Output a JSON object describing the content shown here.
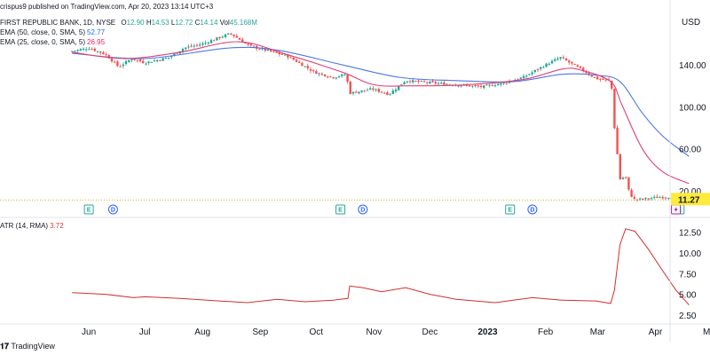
{
  "header": {
    "published": "crispus9 published on TradingView.com, Apr 20, 2023 13:14 UTC+3",
    "symbol": "FIRST REPUBLIC BANK, 1D, NYSE",
    "ohlc": {
      "o_label": "O",
      "o": "12.90",
      "h_label": "H",
      "h": "14.53",
      "l_label": "L",
      "l": "12.72",
      "c_label": "C",
      "c": "14.14",
      "vol_label": "Vol",
      "vol": "45.168M"
    },
    "ema50": {
      "label": "EMA (50, close, 0, SMA, 5)",
      "value": "52.77",
      "color": "#2962ff"
    },
    "ema25": {
      "label": "EMA (25, close, 0, SMA, 5)",
      "value": "26.95",
      "color": "#e91e63"
    },
    "atr": {
      "label": "ATR (14, RMA)",
      "value": "3.72",
      "color": "#e53935"
    }
  },
  "currency": "USD",
  "last_price": "11.27",
  "footer_brand": "TradingView",
  "colors": {
    "up": "#26a69a",
    "down": "#ef5350",
    "ema50": "#4a78e0",
    "ema25": "#e0407a",
    "atr": "#d32f2f",
    "earnings": "#26a69a",
    "dividend": "#2962ff",
    "split": "#9c27b0",
    "price_tag": "#ffeb3b"
  },
  "chart_data": [
    {
      "type": "candlestick",
      "title": "FIRST REPUBLIC BANK, 1D, NYSE",
      "x_tick_labels": [
        "Jun",
        "Jul",
        "Aug",
        "Sep",
        "Oct",
        "Nov",
        "Dec",
        "2023",
        "Feb",
        "Mar",
        "Apr",
        "May"
      ],
      "y_tick_labels": [
        "20.00",
        "60.00",
        "100.00",
        "140.00"
      ],
      "ylim": [
        5,
        190
      ],
      "price_path": [
        [
          "2022-05-23",
          153
        ],
        [
          "2022-06-01",
          156
        ],
        [
          "2022-06-10",
          150
        ],
        [
          "2022-06-17",
          138
        ],
        [
          "2022-06-24",
          146
        ],
        [
          "2022-07-01",
          142
        ],
        [
          "2022-07-14",
          147
        ],
        [
          "2022-07-22",
          156
        ],
        [
          "2022-08-01",
          160
        ],
        [
          "2022-08-10",
          166
        ],
        [
          "2022-08-16",
          170
        ],
        [
          "2022-08-26",
          158
        ],
        [
          "2022-09-06",
          153
        ],
        [
          "2022-09-16",
          148
        ],
        [
          "2022-09-30",
          133
        ],
        [
          "2022-10-10",
          128
        ],
        [
          "2022-10-17",
          131
        ],
        [
          "2022-10-19",
          113
        ],
        [
          "2022-10-31",
          117
        ],
        [
          "2022-11-09",
          112
        ],
        [
          "2022-11-18",
          125
        ],
        [
          "2022-12-01",
          123
        ],
        [
          "2022-12-15",
          121
        ],
        [
          "2022-12-29",
          119
        ],
        [
          "2023-01-10",
          123
        ],
        [
          "2023-01-20",
          128
        ],
        [
          "2023-02-01",
          140
        ],
        [
          "2023-02-09",
          147
        ],
        [
          "2023-02-17",
          139
        ],
        [
          "2023-02-28",
          127
        ],
        [
          "2023-03-07",
          125
        ],
        [
          "2023-03-09",
          115
        ],
        [
          "2023-03-10",
          81
        ],
        [
          "2023-03-13",
          31
        ],
        [
          "2023-03-16",
          34
        ],
        [
          "2023-03-17",
          23
        ],
        [
          "2023-03-20",
          12
        ],
        [
          "2023-03-24",
          12
        ],
        [
          "2023-04-03",
          14
        ],
        [
          "2023-04-19",
          14.14
        ]
      ],
      "series": [
        {
          "name": "EMA (50, close, 0, SMA, 5)",
          "points": [
            [
              "2022-05-23",
              151
            ],
            [
              "2022-07-01",
              146
            ],
            [
              "2022-08-15",
              156
            ],
            [
              "2022-09-10",
              154
            ],
            [
              "2022-10-15",
              140
            ],
            [
              "2022-11-15",
              128
            ],
            [
              "2022-12-15",
              125
            ],
            [
              "2023-01-15",
              124
            ],
            [
              "2023-02-10",
              131
            ],
            [
              "2023-03-01",
              130
            ],
            [
              "2023-03-13",
              124
            ],
            [
              "2023-03-25",
              94
            ],
            [
              "2023-04-05",
              72
            ],
            [
              "2023-04-19",
              52.77
            ]
          ]
        },
        {
          "name": "EMA (25, close, 0, SMA, 5)",
          "points": [
            [
              "2022-05-23",
              152
            ],
            [
              "2022-06-20",
              146
            ],
            [
              "2022-07-20",
              152
            ],
            [
              "2022-08-20",
              162
            ],
            [
              "2022-09-15",
              150
            ],
            [
              "2022-10-15",
              133
            ],
            [
              "2022-11-01",
              121
            ],
            [
              "2022-11-20",
              120
            ],
            [
              "2022-12-20",
              121
            ],
            [
              "2023-01-20",
              126
            ],
            [
              "2023-02-10",
              136
            ],
            [
              "2023-02-20",
              135
            ],
            [
              "2023-03-08",
              124
            ],
            [
              "2023-03-14",
              102
            ],
            [
              "2023-03-25",
              60
            ],
            [
              "2023-04-05",
              38
            ],
            [
              "2023-04-19",
              26.95
            ]
          ]
        }
      ],
      "event_markers": [
        {
          "label": "E",
          "date": "2022-06-01"
        },
        {
          "label": "D",
          "date": "2022-06-14"
        },
        {
          "label": "E",
          "date": "2022-10-14"
        },
        {
          "label": "D",
          "date": "2022-10-26"
        },
        {
          "label": "E",
          "date": "2023-01-13"
        },
        {
          "label": "D",
          "date": "2023-01-25"
        },
        {
          "label": "E",
          "date": "2023-04-14"
        }
      ],
      "split_marker": {
        "date": "2023-04-12"
      }
    },
    {
      "type": "line",
      "title": "ATR (14, RMA)",
      "y_tick_labels": [
        "2.50",
        "5.00",
        "7.50",
        "10.00",
        "12.50"
      ],
      "ylim": [
        2,
        13.5
      ],
      "points": [
        [
          "2022-05-23",
          5.2
        ],
        [
          "2022-06-10",
          5.0
        ],
        [
          "2022-06-25",
          4.6
        ],
        [
          "2022-07-01",
          4.7
        ],
        [
          "2022-07-20",
          4.5
        ],
        [
          "2022-08-10",
          4.2
        ],
        [
          "2022-08-25",
          4.0
        ],
        [
          "2022-09-10",
          4.4
        ],
        [
          "2022-09-25",
          4.1
        ],
        [
          "2022-10-10",
          4.3
        ],
        [
          "2022-10-18",
          4.5
        ],
        [
          "2022-10-19",
          6.0
        ],
        [
          "2022-10-26",
          5.8
        ],
        [
          "2022-11-05",
          5.3
        ],
        [
          "2022-11-18",
          5.8
        ],
        [
          "2022-12-01",
          5.0
        ],
        [
          "2022-12-15",
          4.4
        ],
        [
          "2023-01-05",
          4.0
        ],
        [
          "2023-01-25",
          4.6
        ],
        [
          "2023-02-10",
          4.3
        ],
        [
          "2023-02-28",
          4.2
        ],
        [
          "2023-03-08",
          3.9
        ],
        [
          "2023-03-10",
          5.5
        ],
        [
          "2023-03-13",
          11.0
        ],
        [
          "2023-03-16",
          12.9
        ],
        [
          "2023-03-21",
          12.6
        ],
        [
          "2023-03-28",
          10.5
        ],
        [
          "2023-04-05",
          7.8
        ],
        [
          "2023-04-12",
          5.5
        ],
        [
          "2023-04-19",
          3.72
        ]
      ]
    }
  ]
}
